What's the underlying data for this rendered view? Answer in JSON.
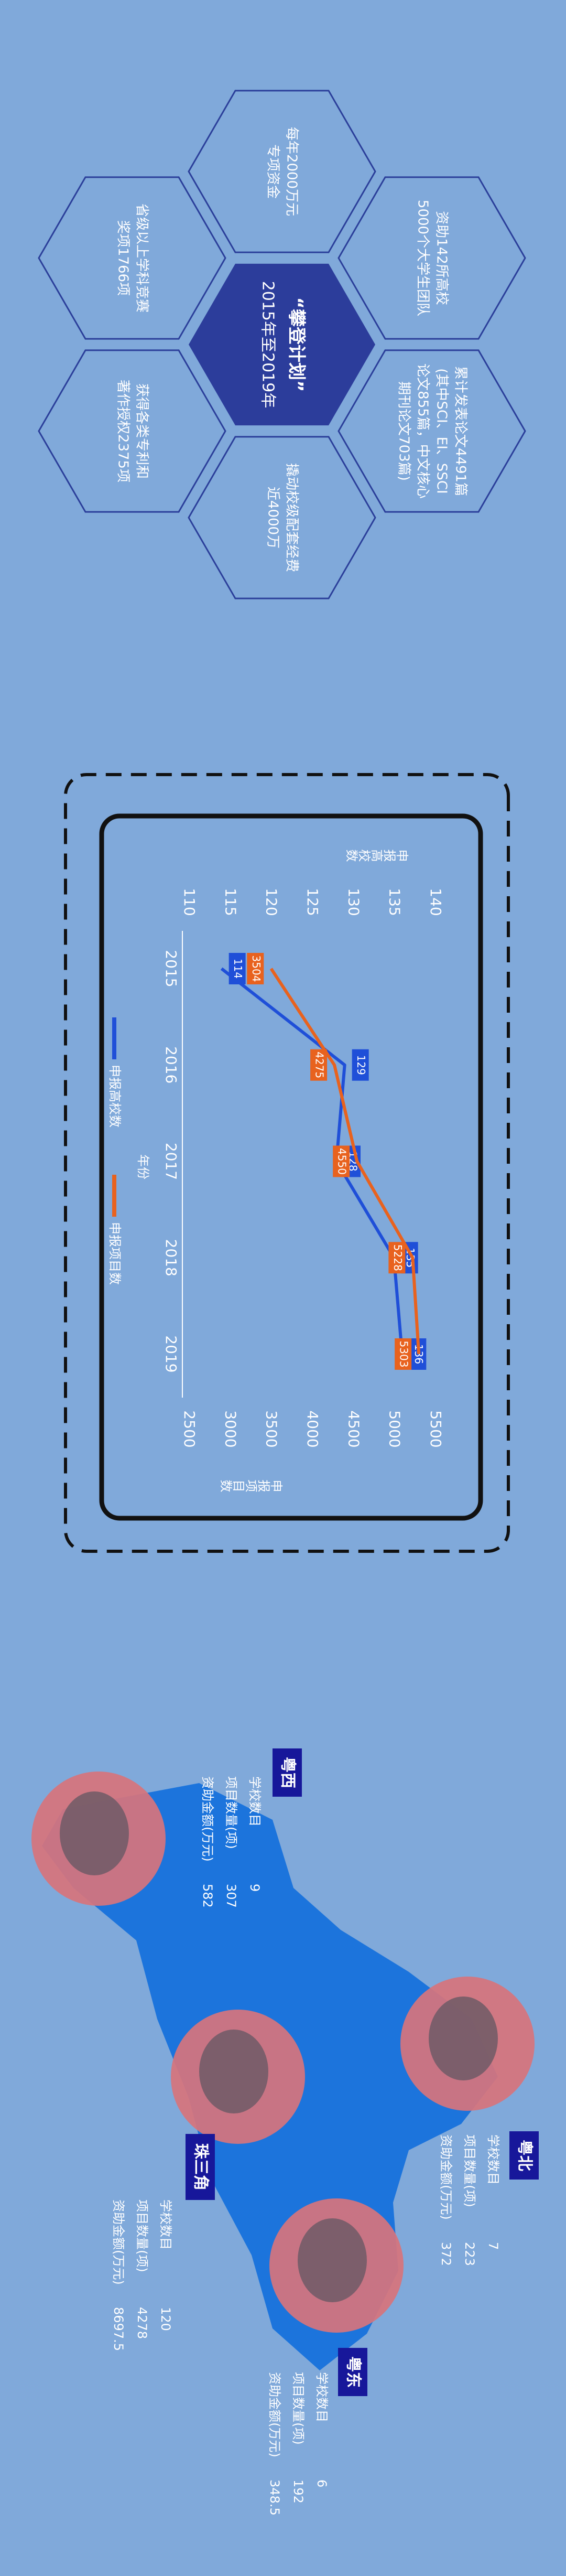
{
  "hexagons": {
    "center": {
      "title": "“攀登计划”",
      "subtitle": "2015年至2019年"
    },
    "items": [
      {
        "lines": [
          "每年2000万元",
          "专项资金"
        ]
      },
      {
        "lines": [
          "资助142所高校",
          "5000个大学生团队"
        ]
      },
      {
        "lines": [
          "累计发表论文4491篇",
          "(其中SCI、EI、SSCI",
          "论文855篇，中文核心",
          "期刊论文703篇)"
        ]
      },
      {
        "lines": [
          "撬动校级配套经费",
          "近4000万"
        ]
      },
      {
        "lines": [
          "省级以上学科竞赛",
          "奖项1766项"
        ]
      },
      {
        "lines": [
          "获得各类专利和",
          "著作授权2375项"
        ]
      }
    ]
  },
  "chart_data": {
    "type": "line",
    "xlabel": "年份",
    "ylabel": "申报高校数",
    "y2label": "申报项目数",
    "categories": [
      "2015",
      "2016",
      "2017",
      "2018",
      "2019"
    ],
    "series": [
      {
        "name": "申报高校数",
        "color": "#1f4fd8",
        "values": [
          114,
          129,
          128,
          135,
          136
        ]
      },
      {
        "name": "申报项目数",
        "color": "#e8621e",
        "axis": "y2",
        "values": [
          3504,
          4275,
          4550,
          5228,
          5303
        ]
      }
    ],
    "ylim": [
      110,
      140
    ],
    "yticks": [
      110,
      115,
      120,
      125,
      130,
      135,
      140
    ],
    "y2lim": [
      2500,
      5500
    ],
    "y2ticks": [
      2500,
      3000,
      3500,
      4000,
      4500,
      5000,
      5500
    ],
    "grid": false
  },
  "regions": [
    {
      "name": "粤西",
      "rows": [
        {
          "label": "学校数目",
          "value": 9
        },
        {
          "label": "项目数量(项)",
          "value": 307
        },
        {
          "label": "资助金额(万元)",
          "value": 582
        }
      ]
    },
    {
      "name": "粤北",
      "rows": [
        {
          "label": "学校数目",
          "value": 7
        },
        {
          "label": "项目数量(项)",
          "value": 223
        },
        {
          "label": "资助金额(万元)",
          "value": 372
        }
      ]
    },
    {
      "name": "珠三角",
      "rows": [
        {
          "label": "学校数目",
          "value": 120
        },
        {
          "label": "项目数量(项)",
          "value": 4278
        },
        {
          "label": "资助金额(万元)",
          "value": 8697.5
        }
      ]
    },
    {
      "name": "粤东",
      "rows": [
        {
          "label": "学校数目",
          "value": 6
        },
        {
          "label": "项目数量(项)",
          "value": 192
        },
        {
          "label": "资助金额(万元)",
          "value": 348.5
        }
      ]
    }
  ]
}
